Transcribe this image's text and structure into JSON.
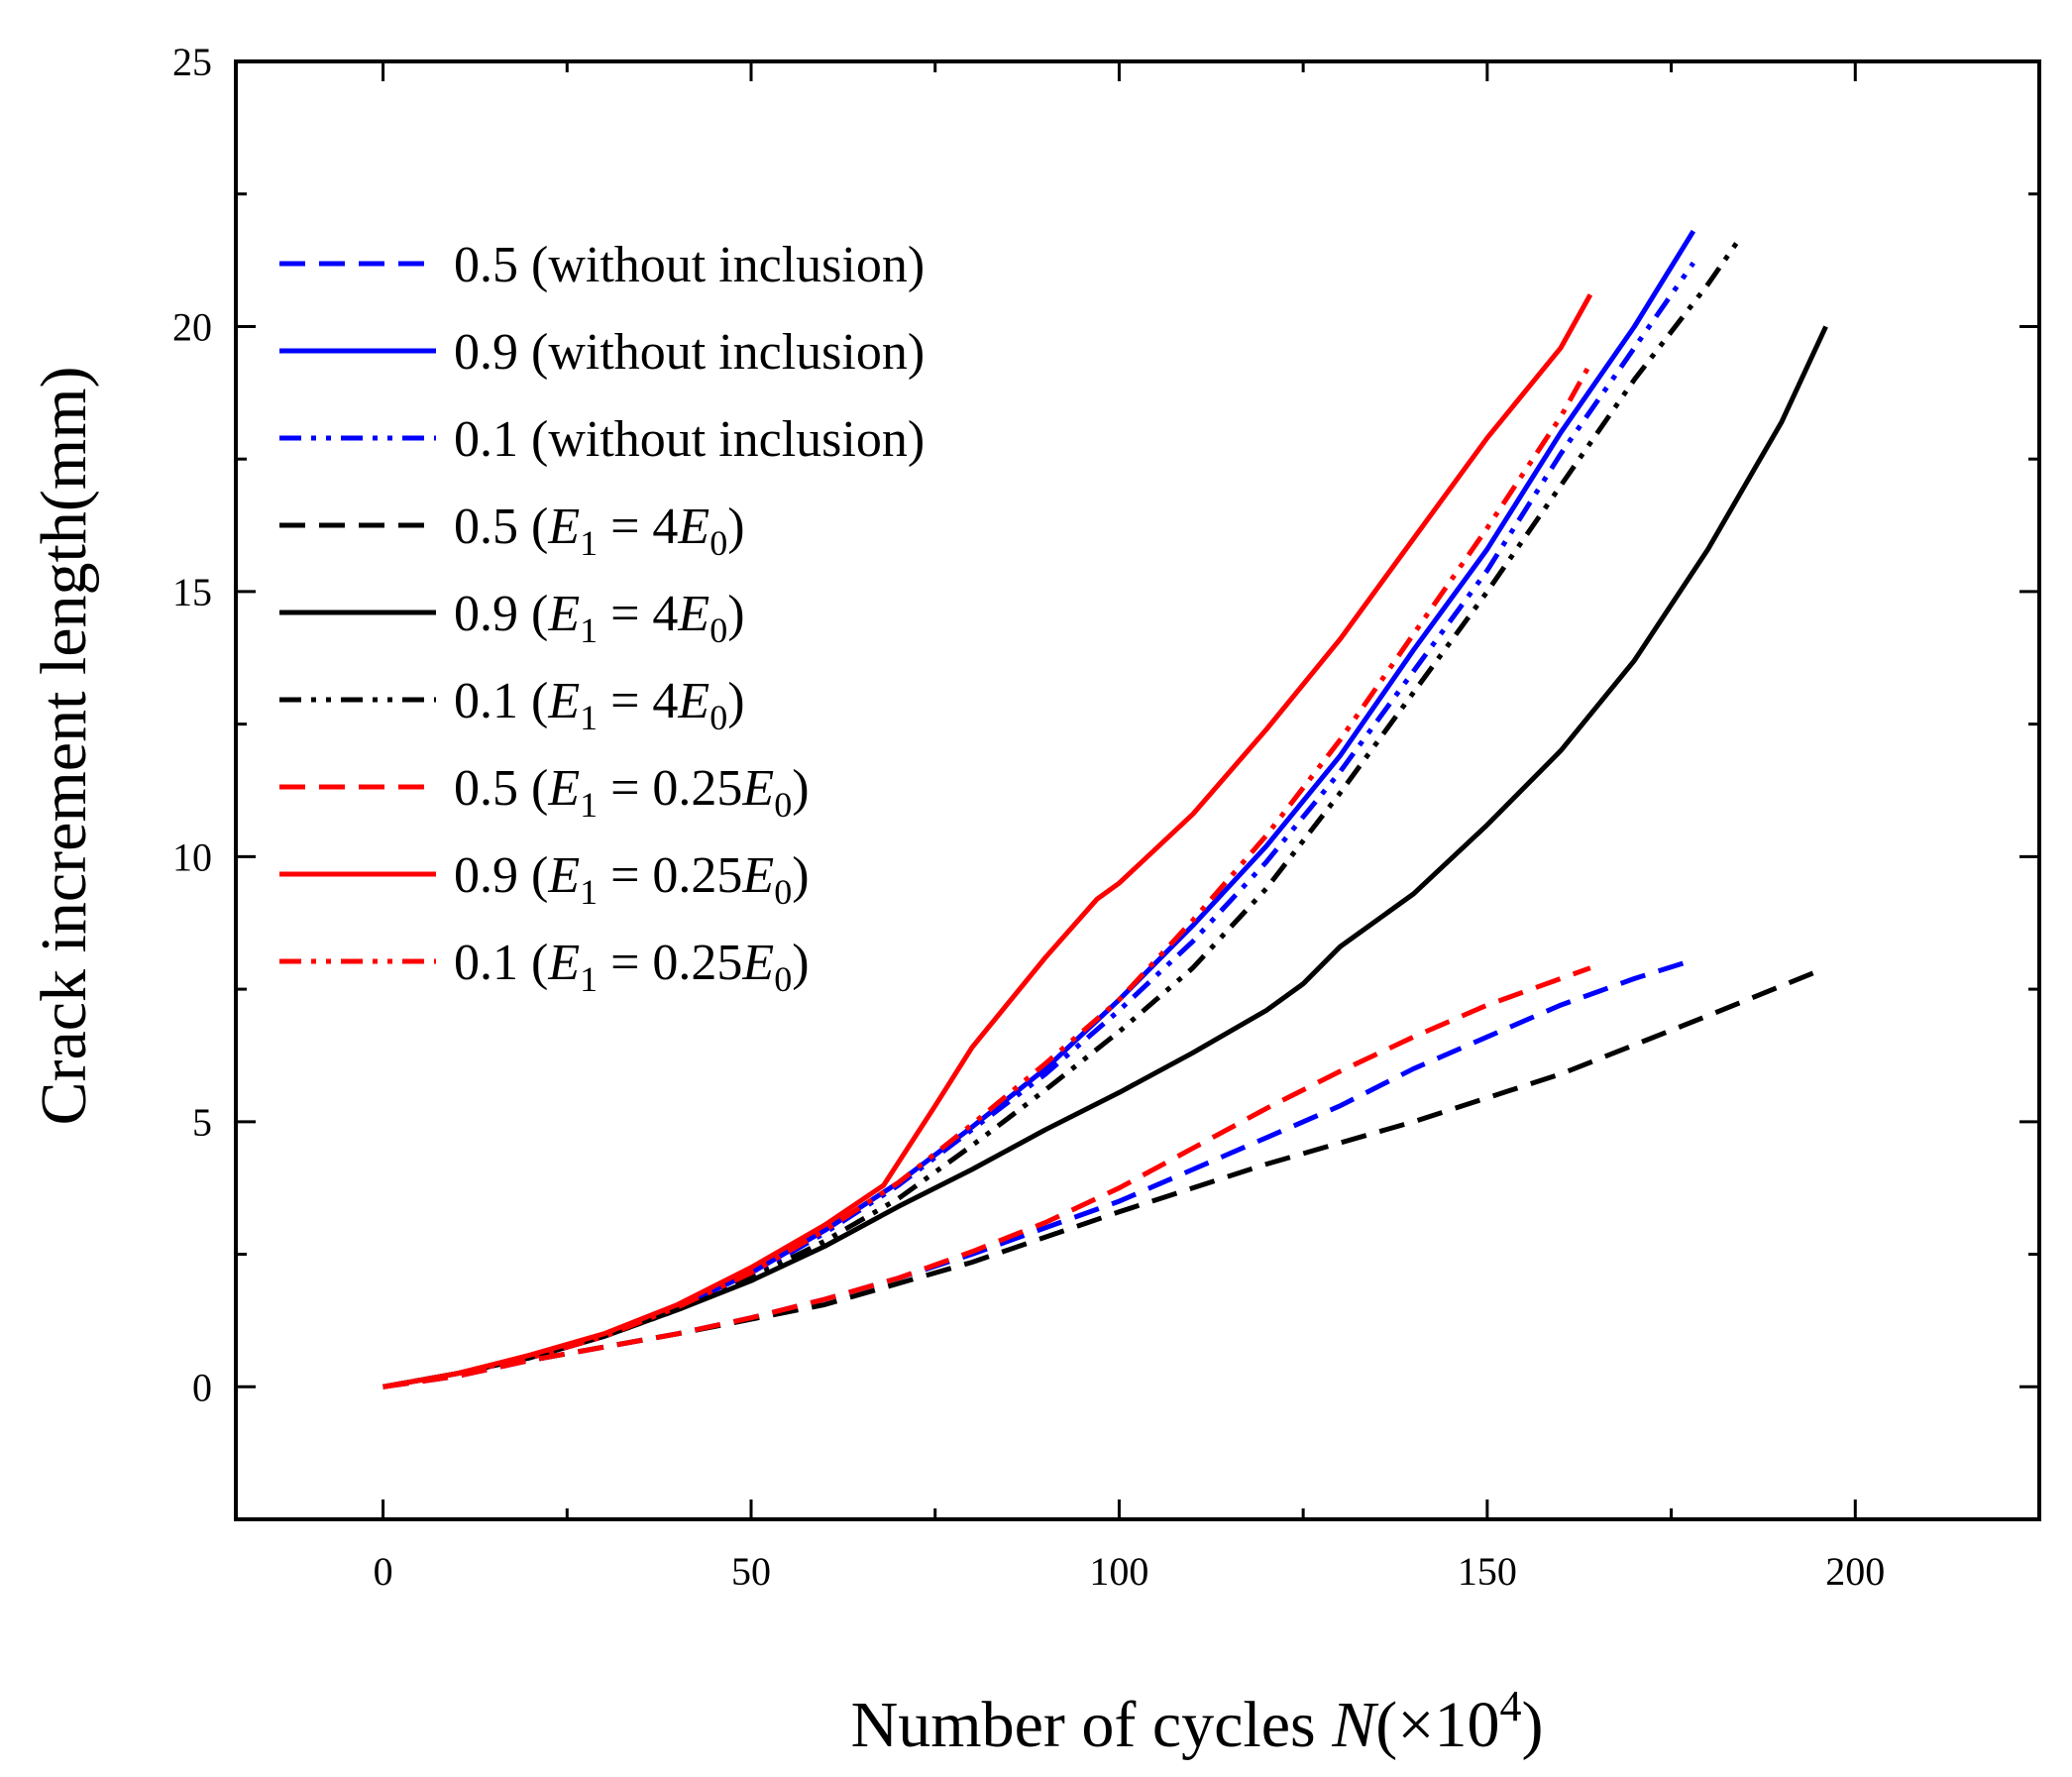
{
  "chart_data": {
    "type": "line",
    "title": "",
    "xlabel": "Number of cycles N(×10^4)",
    "xlabel_parts": {
      "prefix": "Number of cycles ",
      "var": "N",
      "mid": "(×10",
      "sup": "4",
      "suffix": ")"
    },
    "ylabel": "Crack increment length(mm)",
    "xlim": [
      -20,
      225
    ],
    "ylim": [
      -2.5,
      25
    ],
    "xticks": [
      0,
      50,
      100,
      150,
      200
    ],
    "yticks": [
      0,
      5,
      10,
      15,
      20,
      25
    ],
    "legend_position": "upper-left",
    "grid": false,
    "series": [
      {
        "name": "0.5 (without inclusion)",
        "legend": {
          "prefix": "0.5 (without inclusion)",
          "math": false
        },
        "color": "#0000ff",
        "style": "dash",
        "x": [
          0,
          10,
          20,
          30,
          40,
          50,
          60,
          70,
          80,
          90,
          100,
          110,
          120,
          130,
          140,
          150,
          160,
          170,
          178
        ],
        "y": [
          0,
          0.2,
          0.5,
          0.75,
          1.0,
          1.3,
          1.65,
          2.05,
          2.5,
          3.0,
          3.5,
          4.1,
          4.7,
          5.3,
          6.0,
          6.6,
          7.2,
          7.7,
          8.05
        ]
      },
      {
        "name": "0.9 (without inclusion)",
        "legend": {
          "prefix": "0.9   (without inclusion)",
          "math": false
        },
        "color": "#0000ff",
        "style": "solid",
        "x": [
          0,
          10,
          20,
          30,
          40,
          50,
          60,
          70,
          80,
          90,
          100,
          110,
          120,
          130,
          140,
          150,
          160,
          170,
          178
        ],
        "y": [
          0,
          0.25,
          0.55,
          0.95,
          1.5,
          2.15,
          2.95,
          3.85,
          4.9,
          6.0,
          7.3,
          8.7,
          10.2,
          11.9,
          13.9,
          15.8,
          18.0,
          20.0,
          21.8
        ]
      },
      {
        "name": "0.1 (without inclusion)",
        "legend": {
          "prefix": "0.1   (without inclusion)",
          "math": false
        },
        "color": "#0000ff",
        "style": "dashdotdot",
        "x": [
          0,
          10,
          20,
          30,
          40,
          50,
          60,
          70,
          80,
          90,
          100,
          110,
          120,
          130,
          140,
          150,
          160,
          170,
          178
        ],
        "y": [
          0,
          0.25,
          0.55,
          0.95,
          1.5,
          2.1,
          2.9,
          3.8,
          4.85,
          5.9,
          7.1,
          8.4,
          9.9,
          11.6,
          13.5,
          15.4,
          17.6,
          19.6,
          21.2
        ]
      },
      {
        "name": "0.5 (E1 = 4E0)",
        "legend": {
          "prefix": "0.5 (",
          "math": true,
          "coef": "4"
        },
        "color": "#000000",
        "style": "dash",
        "x": [
          0,
          20,
          40,
          60,
          80,
          100,
          120,
          140,
          160,
          180,
          196
        ],
        "y": [
          0,
          0.5,
          1.0,
          1.55,
          2.35,
          3.3,
          4.2,
          5.0,
          5.9,
          7.0,
          7.9
        ]
      },
      {
        "name": "0.9 (E1 = 4E0)",
        "legend": {
          "prefix": "0.9  (",
          "math": true,
          "coef": "4"
        },
        "color": "#000000",
        "style": "solid",
        "x": [
          0,
          10,
          20,
          30,
          40,
          50,
          60,
          70,
          80,
          90,
          100,
          110,
          120,
          125,
          130,
          140,
          150,
          160,
          170,
          180,
          190,
          196
        ],
        "y": [
          0,
          0.25,
          0.55,
          0.95,
          1.45,
          2.0,
          2.65,
          3.4,
          4.1,
          4.85,
          5.55,
          6.3,
          7.1,
          7.6,
          8.3,
          9.3,
          10.6,
          12.0,
          13.7,
          15.8,
          18.2,
          20.0
        ]
      },
      {
        "name": "0.1 (E1 = 4E0)",
        "legend": {
          "prefix": "0.1   (",
          "math": true,
          "coef": "4"
        },
        "color": "#000000",
        "style": "dashdotdot",
        "x": [
          0,
          10,
          20,
          30,
          40,
          50,
          60,
          70,
          80,
          90,
          100,
          110,
          120,
          130,
          140,
          150,
          160,
          170,
          180,
          184
        ],
        "y": [
          0,
          0.25,
          0.55,
          0.95,
          1.45,
          2.05,
          2.75,
          3.55,
          4.55,
          5.6,
          6.7,
          7.9,
          9.4,
          11.2,
          13.1,
          15.0,
          17.0,
          19.0,
          20.8,
          21.6
        ]
      },
      {
        "name": "0.5 (E1 = 0.25E0)",
        "legend": {
          "prefix": "0.5 (",
          "math": true,
          "coef": "0.25"
        },
        "color": "#ff0000",
        "style": "dash",
        "x": [
          0,
          10,
          20,
          30,
          40,
          50,
          60,
          70,
          80,
          90,
          100,
          110,
          120,
          130,
          140,
          150,
          164
        ],
        "y": [
          0,
          0.2,
          0.5,
          0.75,
          1.0,
          1.3,
          1.65,
          2.05,
          2.55,
          3.1,
          3.75,
          4.5,
          5.25,
          5.95,
          6.6,
          7.2,
          7.9
        ]
      },
      {
        "name": "0.9 (E1 = 0.25E0)",
        "legend": {
          "prefix": "0.9  (",
          "math": true,
          "coef": "0.25"
        },
        "color": "#ff0000",
        "style": "solid",
        "x": [
          0,
          10,
          20,
          30,
          40,
          50,
          60,
          68,
          75,
          80,
          90,
          97,
          100,
          110,
          120,
          130,
          140,
          150,
          160,
          164
        ],
        "y": [
          0,
          0.25,
          0.6,
          1.0,
          1.55,
          2.25,
          3.05,
          3.8,
          5.3,
          6.4,
          8.1,
          9.2,
          9.5,
          10.8,
          12.4,
          14.1,
          16.0,
          17.9,
          19.6,
          20.6
        ]
      },
      {
        "name": "0.1 (E1 = 0.25E0)",
        "legend": {
          "prefix": "0.1   (",
          "math": true,
          "coef": "0.25"
        },
        "color": "#ff0000",
        "style": "dashdotdot",
        "x": [
          0,
          10,
          20,
          30,
          40,
          50,
          60,
          70,
          80,
          90,
          100,
          110,
          120,
          130,
          140,
          150,
          160,
          164
        ],
        "y": [
          0,
          0.25,
          0.55,
          0.95,
          1.5,
          2.15,
          2.95,
          3.85,
          4.95,
          6.1,
          7.3,
          8.8,
          10.4,
          12.2,
          14.2,
          16.2,
          18.3,
          19.3
        ]
      }
    ]
  }
}
